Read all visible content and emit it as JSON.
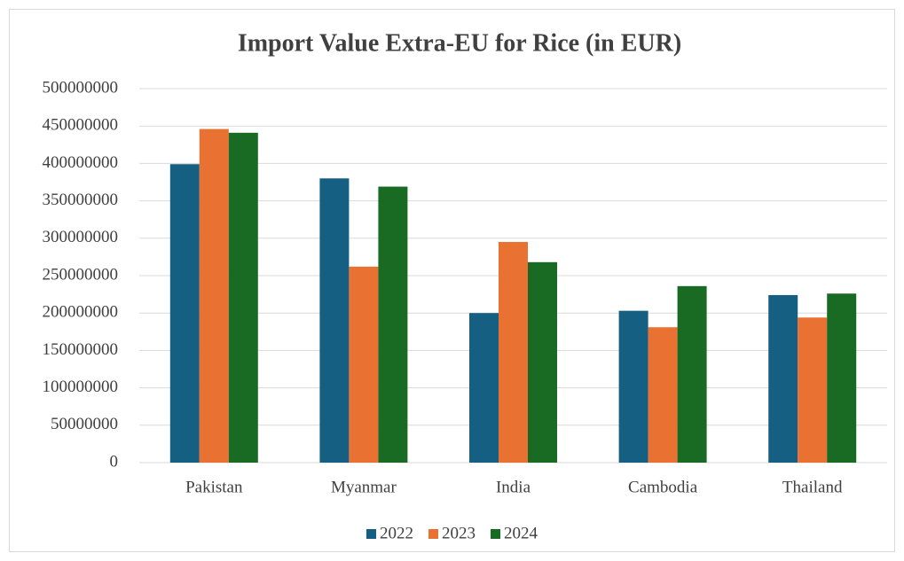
{
  "chart_data": {
    "type": "bar",
    "title": "Import Value Extra-EU for Rice (in EUR)",
    "categories": [
      "Pakistan",
      "Myanmar",
      "India",
      "Cambodia",
      "Thailand"
    ],
    "series": [
      {
        "name": "2022",
        "color": "#156082",
        "values": [
          399000000,
          380000000,
          200000000,
          203000000,
          224000000
        ]
      },
      {
        "name": "2023",
        "color": "#e97132",
        "values": [
          446000000,
          262000000,
          295000000,
          181000000,
          194000000
        ]
      },
      {
        "name": "2024",
        "color": "#196b24",
        "values": [
          441000000,
          369000000,
          268000000,
          236000000,
          226000000
        ]
      }
    ],
    "ylim": [
      0,
      500000000
    ],
    "yticks": [
      0,
      50000000,
      100000000,
      150000000,
      200000000,
      250000000,
      300000000,
      350000000,
      400000000,
      450000000,
      500000000
    ],
    "grid": true,
    "legend": "bottom"
  }
}
